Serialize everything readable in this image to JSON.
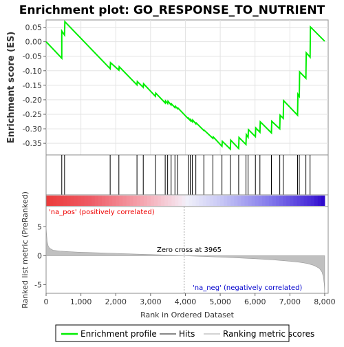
{
  "title": "Enrichment plot: GO_RESPONSE_TO_NUTRIENT",
  "colors": {
    "profile": "#00ee00",
    "hits": "#000000",
    "metric": "#c0c0c0",
    "pos_label": "#ee0000",
    "neg_label": "#0000cc",
    "zero_line": "#a0a0a0"
  },
  "chart_data": [
    {
      "type": "line",
      "name": "enrichment-profile",
      "ylabel": "Enrichment score (ES)",
      "xlim": [
        0,
        8100
      ],
      "ylim": [
        -0.39,
        0.075
      ],
      "yticks": [
        0.05,
        0.0,
        -0.05,
        -0.1,
        -0.15,
        -0.2,
        -0.25,
        -0.3,
        -0.35
      ],
      "ytick_labels": [
        "0.05",
        "0.00",
        "-0.05",
        "-0.10",
        "-0.15",
        "-0.20",
        "-0.25",
        "-0.30",
        "-0.35"
      ],
      "grid": true,
      "series": [
        {
          "x": [
            0,
            450,
            450,
            530,
            540,
            1840,
            1850,
            2090,
            2100,
            2610,
            2620,
            2790,
            2800,
            3140,
            3150,
            3420,
            3430,
            3490,
            3500,
            3590,
            3600,
            3700,
            3710,
            3780,
            3790,
            4080,
            4090,
            4140,
            4150,
            4200,
            4210,
            4300,
            4310,
            4530,
            4540,
            4790,
            4800,
            5050,
            5060,
            5290,
            5300,
            5530,
            5540,
            5740,
            5750,
            5800,
            5810,
            6010,
            6020,
            6140,
            6150,
            6470,
            6480,
            6710,
            6720,
            6810,
            6820,
            7220,
            7230,
            7270,
            7280,
            7460,
            7470,
            7580,
            7590,
            8000
          ],
          "y": [
            0.0,
            -0.057,
            0.037,
            0.023,
            0.069,
            -0.093,
            -0.072,
            -0.098,
            -0.086,
            -0.149,
            -0.137,
            -0.157,
            -0.145,
            -0.188,
            -0.177,
            -0.211,
            -0.204,
            -0.213,
            -0.205,
            -0.218,
            -0.214,
            -0.227,
            -0.222,
            -0.231,
            -0.229,
            -0.265,
            -0.263,
            -0.272,
            -0.268,
            -0.276,
            -0.27,
            -0.283,
            -0.28,
            -0.306,
            -0.305,
            -0.333,
            -0.328,
            -0.36,
            -0.343,
            -0.37,
            -0.339,
            -0.368,
            -0.33,
            -0.354,
            -0.32,
            -0.329,
            -0.303,
            -0.327,
            -0.297,
            -0.312,
            -0.276,
            -0.314,
            -0.274,
            -0.3,
            -0.253,
            -0.264,
            -0.203,
            -0.253,
            -0.181,
            -0.188,
            -0.104,
            -0.126,
            -0.038,
            -0.053,
            0.051,
            0.002
          ]
        }
      ]
    },
    {
      "type": "scatter",
      "name": "hits",
      "xlim": [
        0,
        8100
      ],
      "series": [
        {
          "x": [
            450,
            530,
            1840,
            2090,
            2610,
            2790,
            3140,
            3420,
            3490,
            3590,
            3700,
            3780,
            4080,
            4140,
            4200,
            4300,
            4530,
            4790,
            5050,
            5290,
            5530,
            5740,
            5800,
            6010,
            6140,
            6470,
            6710,
            6810,
            7220,
            7270,
            7460,
            7580
          ]
        }
      ]
    },
    {
      "type": "area",
      "name": "ranked-list-metric",
      "xlabel": "Rank in Ordered Dataset",
      "ylabel": "Ranked list metric (PreRanked)",
      "xlim": [
        0,
        8100
      ],
      "ylim": [
        -6.5,
        8.5
      ],
      "xticks": [
        0,
        1000,
        2000,
        3000,
        4000,
        5000,
        6000,
        7000,
        8000
      ],
      "xtick_labels": [
        "0",
        "1,000",
        "2,000",
        "3,000",
        "4,000",
        "5,000",
        "6,000",
        "7,000",
        "8,000"
      ],
      "yticks": [
        5,
        0,
        -5
      ],
      "ytick_labels": [
        "5",
        "0",
        "-5"
      ],
      "series": [
        {
          "x": [
            0,
            10,
            30,
            60,
            100,
            200,
            400,
            700,
            1000,
            1500,
            2000,
            2500,
            3000,
            3500,
            3965,
            4500,
            5000,
            5500,
            6000,
            6500,
            7000,
            7300,
            7500,
            7700,
            7850,
            7920,
            7960,
            7990,
            8000
          ],
          "y": [
            5.2,
            4.0,
            2.5,
            1.7,
            1.3,
            0.95,
            0.8,
            0.68,
            0.6,
            0.5,
            0.4,
            0.3,
            0.2,
            0.1,
            0.0,
            -0.12,
            -0.25,
            -0.38,
            -0.52,
            -0.7,
            -0.95,
            -1.15,
            -1.35,
            -1.7,
            -2.2,
            -2.8,
            -3.6,
            -5.0,
            -6.5
          ]
        }
      ],
      "annotations": [
        "'na_pos' (positively correlated)",
        "Zero cross at 3965",
        "'na_neg' (negatively correlated)"
      ],
      "zero_cross": 3965
    }
  ],
  "legend": {
    "placement": "bottom",
    "items": [
      "Enrichment profile",
      "Hits",
      "Ranking metric scores"
    ]
  }
}
